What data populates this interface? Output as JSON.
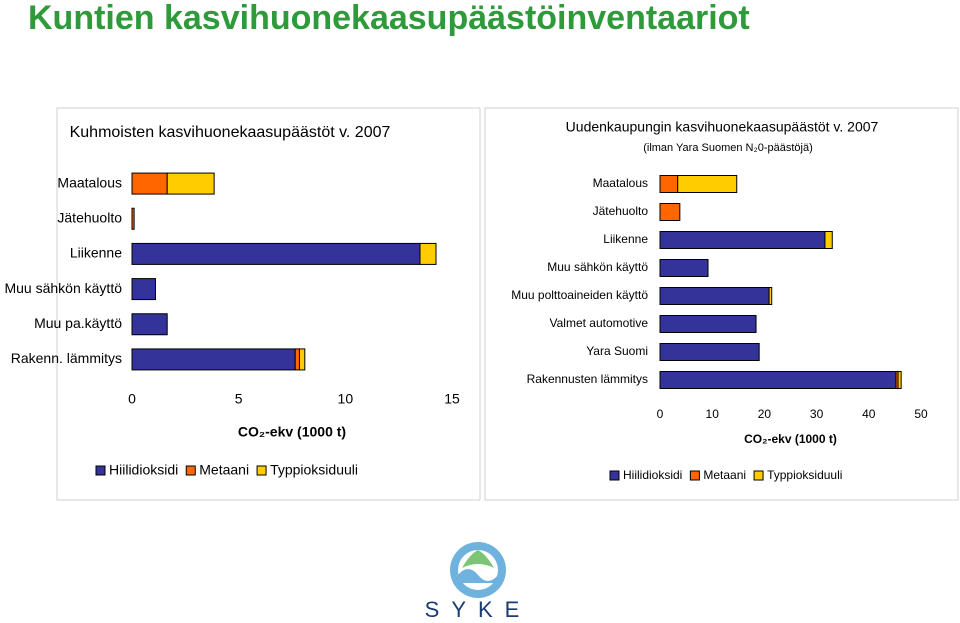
{
  "heading": "Kuntien kasvihuonekaasupäästöinventaariot",
  "logo": "SYKE",
  "chart_data": [
    {
      "type": "stacked-barh",
      "title": "Kuhmoisten kasvihuonekaasupäästöt v. 2007",
      "x_label": "CO₂-ekv (1000 t)",
      "categories": [
        "Maatalous",
        "Jätehuolto",
        "Liikenne",
        "Muu sähkön käyttö",
        "Muu pa.käyttö",
        "Rakenn. lämmitys"
      ],
      "series": [
        {
          "name": "Hiilidioksidi",
          "color": "#333399",
          "values": [
            0,
            0,
            13.5,
            1.1,
            1.65,
            7.65
          ]
        },
        {
          "name": "Metaani",
          "color": "#ff6600",
          "values": [
            1.65,
            0.1,
            0,
            0,
            0,
            0.2
          ]
        },
        {
          "name": "Typpioksiduuli",
          "color": "#ffcc00",
          "values": [
            2.2,
            0,
            0.75,
            0,
            0,
            0.25
          ]
        }
      ],
      "xlim": [
        0,
        15
      ],
      "xticks": [
        0,
        5,
        10,
        15
      ],
      "grid": false
    },
    {
      "type": "stacked-barh",
      "title": "Uudenkaupungin kasvihuonekaasupäästöt v. 2007",
      "subtitle": "(ilman Yara Suomen N₂0-päästöjä)",
      "x_label": "CO₂-ekv (1000 t)",
      "categories": [
        "Maatalous",
        "Jätehuolto",
        "Liikenne",
        "Muu sähkön käyttö",
        "Muu polttoaineiden käyttö",
        "Valmet automotive",
        "Yara Suomi",
        "Rakennusten lämmitys"
      ],
      "series": [
        {
          "name": "Hiilidioksidi",
          "color": "#333399",
          "values": [
            0,
            0,
            31.6,
            9.2,
            20.9,
            18.4,
            19,
            45.2
          ]
        },
        {
          "name": "Metaani",
          "color": "#ff6600",
          "values": [
            3.4,
            3.8,
            0,
            0,
            0,
            0,
            0,
            0.4
          ]
        },
        {
          "name": "Typpioksiduuli",
          "color": "#ffcc00",
          "values": [
            11.3,
            0,
            1.4,
            0,
            0.5,
            0,
            0,
            0.6
          ]
        }
      ],
      "xlim": [
        0,
        50
      ],
      "xticks": [
        0,
        10,
        20,
        30,
        40,
        50
      ],
      "grid": false
    }
  ]
}
